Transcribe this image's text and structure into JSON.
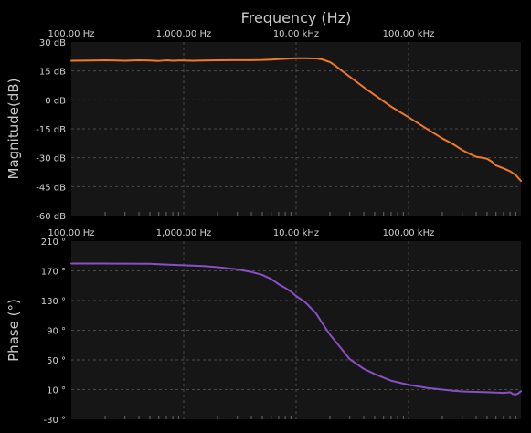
{
  "figure": {
    "title": "Frequency (Hz)",
    "background": "#000000",
    "plot_background": "#161616",
    "grid_color": "#4a4a4a",
    "text_color": "#d0d0d0",
    "axis_title_color": "#c8c8c8"
  },
  "chart_data": [
    {
      "type": "line",
      "name": "magnitude",
      "xscale": "log",
      "xlim": [
        100,
        1000000
      ],
      "xticks": [
        100,
        1000,
        10000,
        100000
      ],
      "xtick_labels": [
        "100.00 Hz",
        "1,000.00 Hz",
        "10.00 kHz",
        "100.00 kHz"
      ],
      "ylabel": "Magnitude(dB)",
      "ylim": [
        -60,
        30
      ],
      "yticks": [
        30,
        15,
        0,
        -15,
        -30,
        -45,
        -60
      ],
      "ytick_labels": [
        "30 dB",
        "15 dB",
        "0 dB",
        "-15 dB",
        "-30 dB",
        "-45 dB",
        "-60 dB"
      ],
      "grid": true,
      "color": "#f07a2a",
      "series": [
        {
          "x": [
            100,
            150,
            200,
            300,
            400,
            500,
            600,
            700,
            800,
            900,
            1000,
            1200,
            1500,
            2000,
            3000,
            4000,
            5000,
            6000,
            7000,
            8000,
            9000,
            10000,
            12000,
            15000,
            17000,
            20000,
            22000,
            25000,
            30000,
            40000,
            50000,
            70000,
            100000,
            150000,
            200000,
            250000,
            300000,
            350000,
            400000,
            450000,
            500000,
            550000,
            600000,
            700000,
            800000,
            900000,
            1000000
          ],
          "y": [
            20.3,
            20.4,
            20.5,
            20.3,
            20.5,
            20.4,
            20.2,
            20.5,
            20.3,
            20.4,
            20.4,
            20.3,
            20.4,
            20.5,
            20.6,
            20.6,
            20.7,
            20.9,
            21.1,
            21.3,
            21.5,
            21.6,
            21.6,
            21.5,
            21.0,
            19.6,
            18.0,
            15.5,
            12.0,
            6.5,
            2.5,
            -3.5,
            -9.0,
            -15.5,
            -20.0,
            -23.0,
            -26.0,
            -28.0,
            -29.5,
            -30.0,
            -30.5,
            -32.0,
            -34.0,
            -35.5,
            -37.0,
            -39.0,
            -42.0
          ]
        }
      ]
    },
    {
      "type": "line",
      "name": "phase",
      "xscale": "log",
      "xlim": [
        100,
        1000000
      ],
      "xticks": [
        100,
        1000,
        10000,
        100000
      ],
      "xtick_labels": [
        "100.00 Hz",
        "1,000.00 Hz",
        "10.00 kHz",
        "100.00 kHz"
      ],
      "ylabel": "Phase (°)",
      "ylim": [
        -30,
        210
      ],
      "yticks": [
        210,
        170,
        130,
        90,
        50,
        10,
        -30
      ],
      "ytick_labels": [
        "210 °",
        "170 °",
        "130 °",
        "90 °",
        "50 °",
        "10 °",
        "-30 °"
      ],
      "grid": true,
      "color": "#8a4fc8",
      "series": [
        {
          "x": [
            100,
            150,
            200,
            300,
            500,
            700,
            1000,
            1500,
            2000,
            3000,
            4000,
            5000,
            6000,
            7000,
            8000,
            9000,
            10000,
            12000,
            15000,
            17000,
            20000,
            25000,
            30000,
            40000,
            50000,
            70000,
            100000,
            150000,
            200000,
            250000,
            300000,
            400000,
            500000,
            600000,
            700000,
            800000,
            850000,
            900000,
            950000,
            1000000
          ],
          "y": [
            179.8,
            179.8,
            179.8,
            179.7,
            179.5,
            178.5,
            177.5,
            176.5,
            175.0,
            172.0,
            168.5,
            164.5,
            159.0,
            152.0,
            147.0,
            142.0,
            136.0,
            128.0,
            113.0,
            100.0,
            84.0,
            66.0,
            51.0,
            38.0,
            31.0,
            22.0,
            16.5,
            12.0,
            10.0,
            8.5,
            7.5,
            7.0,
            6.5,
            6.0,
            5.5,
            6.5,
            4.0,
            3.5,
            5.0,
            8.0
          ]
        }
      ]
    }
  ]
}
